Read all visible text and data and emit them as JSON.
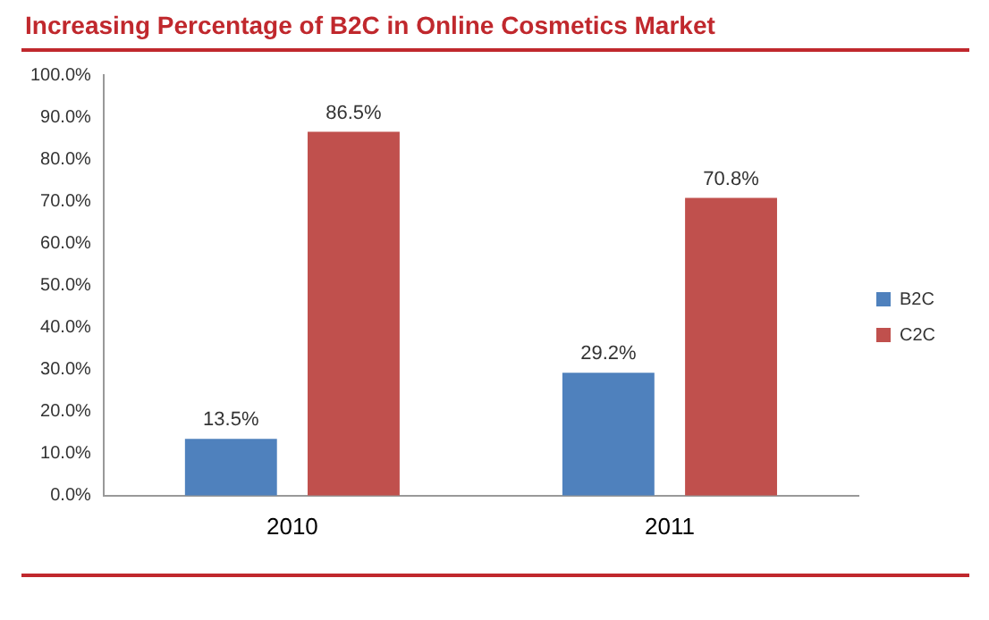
{
  "chart_data": {
    "type": "bar",
    "title": "Increasing Percentage of B2C in Online Cosmetics Market",
    "categories": [
      "2010",
      "2011"
    ],
    "series": [
      {
        "name": "B2C",
        "color": "#4f81bd",
        "values": [
          13.5,
          29.2
        ],
        "value_labels": [
          "13.5%",
          "29.2%"
        ]
      },
      {
        "name": "C2C",
        "color": "#c0504d",
        "values": [
          86.5,
          70.8
        ],
        "value_labels": [
          "86.5%",
          "70.8%"
        ]
      }
    ],
    "ylim": [
      0,
      100
    ],
    "yticks": [
      {
        "value": 0,
        "label": "0.0%"
      },
      {
        "value": 10,
        "label": "10.0%"
      },
      {
        "value": 20,
        "label": "20.0%"
      },
      {
        "value": 30,
        "label": "30.0%"
      },
      {
        "value": 40,
        "label": "40.0%"
      },
      {
        "value": 50,
        "label": "50.0%"
      },
      {
        "value": 60,
        "label": "60.0%"
      },
      {
        "value": 70,
        "label": "70.0%"
      },
      {
        "value": 80,
        "label": "80.0%"
      },
      {
        "value": 90,
        "label": "90.0%"
      },
      {
        "value": 100,
        "label": "100.0%"
      }
    ],
    "grid": false,
    "legend": "right"
  }
}
